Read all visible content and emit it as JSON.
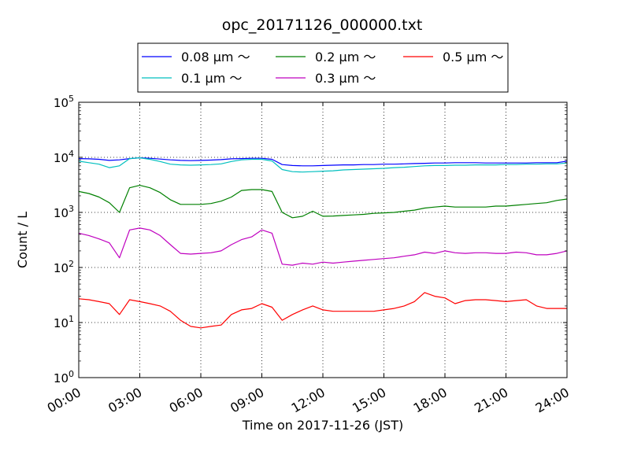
{
  "chart_data": {
    "type": "line",
    "title": "opc_20171126_000000.txt",
    "xlabel": "Time on 2017-11-26 (JST)",
    "ylabel": "Count / L",
    "xlim": [
      0,
      24
    ],
    "ylim": [
      1,
      100000
    ],
    "yscale": "log",
    "grid": true,
    "legend_position": "top-center",
    "x_tick_values": [
      0,
      3,
      6,
      9,
      12,
      15,
      18,
      21,
      24
    ],
    "x_tick_labels": [
      "00:00",
      "03:00",
      "06:00",
      "09:00",
      "12:00",
      "15:00",
      "18:00",
      "21:00",
      "24:00"
    ],
    "y_tick_values": [
      1,
      10,
      100,
      1000,
      10000,
      100000
    ],
    "y_tick_labels": [
      {
        "base": "10",
        "exp": "0"
      },
      {
        "base": "10",
        "exp": "1"
      },
      {
        "base": "10",
        "exp": "2"
      },
      {
        "base": "10",
        "exp": "3"
      },
      {
        "base": "10",
        "exp": "4"
      },
      {
        "base": "10",
        "exp": "5"
      }
    ],
    "series": [
      {
        "name": "0.08 μm ～",
        "color": "#0000ff",
        "x": [
          0,
          0.5,
          1,
          1.5,
          2,
          2.5,
          3,
          3.5,
          4,
          4.5,
          5,
          5.5,
          6,
          6.5,
          7,
          7.5,
          8,
          8.5,
          9,
          9.5,
          10,
          10.5,
          11,
          11.5,
          12,
          12.5,
          13,
          13.5,
          14,
          14.5,
          15,
          15.5,
          16,
          16.5,
          17,
          17.5,
          18,
          18.5,
          19,
          19.5,
          20,
          20.5,
          21,
          21.5,
          22,
          22.5,
          23,
          23.5,
          24
        ],
        "y": [
          9500,
          9400,
          9200,
          8800,
          9000,
          9500,
          9800,
          9600,
          9300,
          9000,
          8800,
          8700,
          8800,
          8900,
          9100,
          9400,
          9500,
          9600,
          9600,
          9200,
          7400,
          7100,
          7000,
          7000,
          7100,
          7200,
          7300,
          7300,
          7400,
          7400,
          7500,
          7500,
          7600,
          7700,
          7800,
          7900,
          7900,
          8000,
          8000,
          8000,
          7900,
          7900,
          7900,
          7900,
          7900,
          8000,
          8000,
          8000,
          8500
        ]
      },
      {
        "name": "0.2 μm ～",
        "color": "#008000",
        "x": [
          0,
          0.5,
          1,
          1.5,
          2,
          2.5,
          3,
          3.5,
          4,
          4.5,
          5,
          5.5,
          6,
          6.5,
          7,
          7.5,
          8,
          8.5,
          9,
          9.5,
          10,
          10.5,
          11,
          11.5,
          12,
          12.5,
          13,
          13.5,
          14,
          14.5,
          15,
          15.5,
          16,
          16.5,
          17,
          17.5,
          18,
          18.5,
          19,
          19.5,
          20,
          20.5,
          21,
          21.5,
          22,
          22.5,
          23,
          23.5,
          24
        ],
        "y": [
          2400,
          2200,
          1900,
          1500,
          1000,
          2800,
          3100,
          2800,
          2300,
          1700,
          1400,
          1400,
          1400,
          1450,
          1600,
          1900,
          2500,
          2600,
          2600,
          2400,
          1000,
          800,
          850,
          1050,
          850,
          860,
          880,
          900,
          920,
          960,
          980,
          1000,
          1050,
          1100,
          1200,
          1250,
          1300,
          1250,
          1250,
          1250,
          1250,
          1300,
          1300,
          1350,
          1400,
          1450,
          1500,
          1650,
          1750
        ]
      },
      {
        "name": "0.5 μm ～",
        "color": "#ff0000",
        "x": [
          0,
          0.5,
          1,
          1.5,
          2,
          2.5,
          3,
          3.5,
          4,
          4.5,
          5,
          5.5,
          6,
          6.5,
          7,
          7.5,
          8,
          8.5,
          9,
          9.5,
          10,
          10.5,
          11,
          11.5,
          12,
          12.5,
          13,
          13.5,
          14,
          14.5,
          15,
          15.5,
          16,
          16.5,
          17,
          17.5,
          18,
          18.5,
          19,
          19.5,
          20,
          20.5,
          21,
          21.5,
          22,
          22.5,
          23,
          23.5,
          24
        ],
        "y": [
          27,
          26,
          24,
          22,
          14,
          26,
          24,
          22,
          20,
          16,
          11,
          8.5,
          8,
          8.5,
          9,
          14,
          17,
          18,
          22,
          19,
          11,
          14,
          17,
          20,
          17,
          16,
          16,
          16,
          16,
          16,
          17,
          18,
          20,
          24,
          35,
          30,
          28,
          22,
          25,
          26,
          26,
          25,
          24,
          25,
          26,
          20,
          18,
          18,
          18
        ]
      },
      {
        "name": "0.1 μm ～",
        "color": "#00bfbf",
        "x": [
          0,
          0.5,
          1,
          1.5,
          2,
          2.5,
          3,
          3.5,
          4,
          4.5,
          5,
          5.5,
          6,
          6.5,
          7,
          7.5,
          8,
          8.5,
          9,
          9.5,
          10,
          10.5,
          11,
          11.5,
          12,
          12.5,
          13,
          13.5,
          14,
          14.5,
          15,
          15.5,
          16,
          16.5,
          17,
          17.5,
          18,
          18.5,
          19,
          19.5,
          20,
          20.5,
          21,
          21.5,
          22,
          22.5,
          23,
          23.5,
          24
        ],
        "y": [
          8500,
          8000,
          7500,
          6500,
          7000,
          9500,
          9800,
          9200,
          8400,
          7500,
          7300,
          7200,
          7300,
          7400,
          7600,
          8400,
          9000,
          9200,
          9200,
          8600,
          6000,
          5500,
          5400,
          5500,
          5600,
          5700,
          5900,
          6000,
          6100,
          6200,
          6300,
          6500,
          6600,
          6800,
          7000,
          7100,
          7100,
          7200,
          7200,
          7300,
          7300,
          7300,
          7400,
          7400,
          7500,
          7500,
          7600,
          7600,
          7900
        ]
      },
      {
        "name": "0.3 μm ～",
        "color": "#bf00bf",
        "x": [
          0,
          0.5,
          1,
          1.5,
          2,
          2.5,
          3,
          3.5,
          4,
          4.5,
          5,
          5.5,
          6,
          6.5,
          7,
          7.5,
          8,
          8.5,
          9,
          9.5,
          10,
          10.5,
          11,
          11.5,
          12,
          12.5,
          13,
          13.5,
          14,
          14.5,
          15,
          15.5,
          16,
          16.5,
          17,
          17.5,
          18,
          18.5,
          19,
          19.5,
          20,
          20.5,
          21,
          21.5,
          22,
          22.5,
          23,
          23.5,
          24
        ],
        "y": [
          420,
          380,
          330,
          280,
          150,
          480,
          520,
          480,
          380,
          260,
          180,
          175,
          180,
          185,
          200,
          260,
          320,
          360,
          480,
          420,
          115,
          110,
          120,
          115,
          125,
          120,
          125,
          130,
          135,
          140,
          145,
          150,
          160,
          170,
          190,
          180,
          200,
          185,
          180,
          185,
          185,
          180,
          180,
          190,
          185,
          170,
          170,
          180,
          200
        ]
      }
    ],
    "legend_order": [
      0,
      3,
      1,
      4,
      2
    ]
  }
}
